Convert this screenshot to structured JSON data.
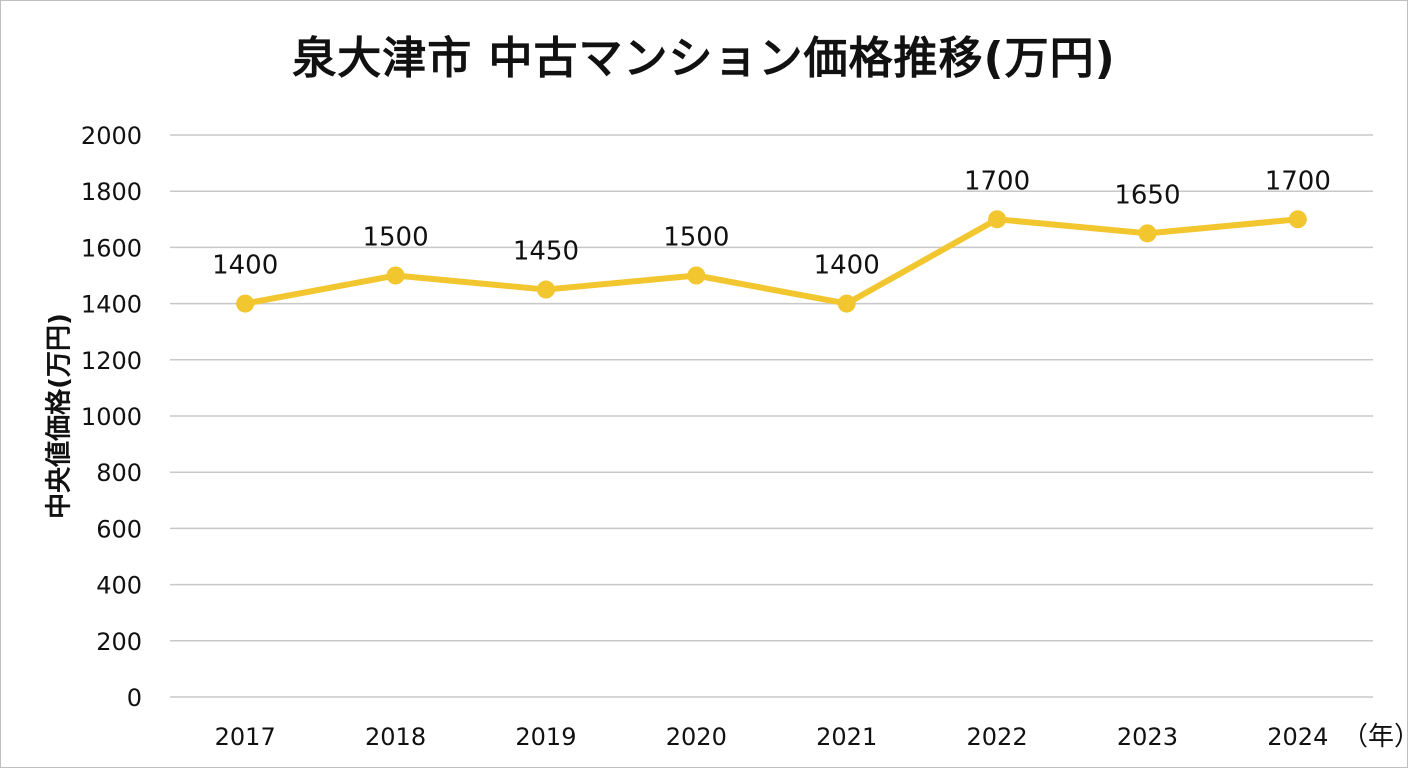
{
  "chart_data": {
    "type": "line",
    "title": "泉大津市 中古マンション価格推移(万円)",
    "xlabel": "（年）",
    "ylabel": "中央値価格(万円)",
    "categories": [
      "2017",
      "2018",
      "2019",
      "2020",
      "2021",
      "2022",
      "2023",
      "2024"
    ],
    "series": [
      {
        "values": [
          1400,
          1500,
          1450,
          1500,
          1400,
          1700,
          1650,
          1700
        ]
      }
    ],
    "data_labels": [
      "1400",
      "1500",
      "1450",
      "1500",
      "1400",
      "1700",
      "1650",
      "1700"
    ],
    "ylim": [
      0,
      2000
    ],
    "yticks": [
      0,
      200,
      400,
      600,
      800,
      1000,
      1200,
      1400,
      1600,
      1800,
      2000
    ],
    "ytick_labels": [
      "0",
      "200",
      "400",
      "600",
      "800",
      "1000",
      "1200",
      "1400",
      "1600",
      "1800",
      "2000"
    ],
    "grid": true,
    "legend": "none",
    "line_color": "#F2C62F"
  }
}
